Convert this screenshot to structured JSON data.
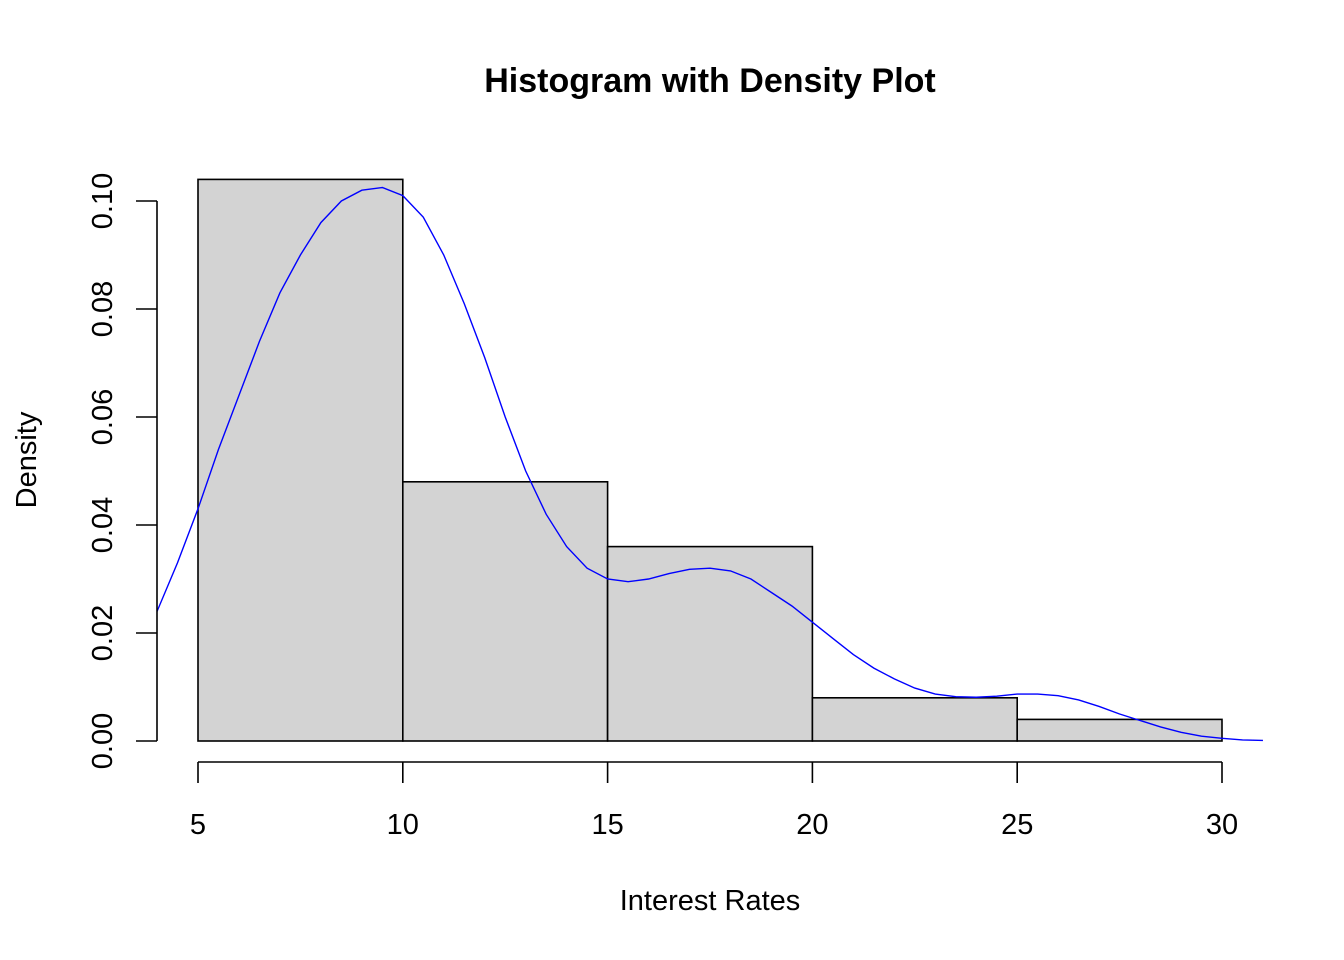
{
  "chart_data": {
    "type": "bar",
    "title": "Histogram with Density Plot",
    "xlabel": "Interest Rates",
    "ylabel": "Density",
    "bins": [
      {
        "from": 5,
        "to": 10,
        "density": 0.104
      },
      {
        "from": 10,
        "to": 15,
        "density": 0.048
      },
      {
        "from": 15,
        "to": 20,
        "density": 0.036
      },
      {
        "from": 20,
        "to": 25,
        "density": 0.008
      },
      {
        "from": 25,
        "to": 30,
        "density": 0.004
      }
    ],
    "density_curve": {
      "x": [
        4,
        4.5,
        5,
        5.5,
        6,
        6.5,
        7,
        7.5,
        8,
        8.5,
        9,
        9.5,
        10,
        10.5,
        11,
        11.5,
        12,
        12.5,
        13,
        13.5,
        14,
        14.5,
        15,
        15.5,
        16,
        16.5,
        17,
        17.5,
        18,
        18.5,
        19,
        19.5,
        20,
        20.5,
        21,
        21.5,
        22,
        22.5,
        23,
        23.5,
        24,
        24.5,
        25,
        25.5,
        26,
        26.5,
        27,
        27.5,
        28,
        28.5,
        29,
        29.5,
        30,
        30.5,
        31
      ],
      "y": [
        0.024,
        0.033,
        0.043,
        0.054,
        0.064,
        0.074,
        0.083,
        0.09,
        0.096,
        0.1,
        0.102,
        0.1025,
        0.101,
        0.097,
        0.09,
        0.081,
        0.071,
        0.06,
        0.05,
        0.042,
        0.036,
        0.032,
        0.03,
        0.0295,
        0.03,
        0.031,
        0.0318,
        0.032,
        0.0315,
        0.03,
        0.0275,
        0.025,
        0.022,
        0.019,
        0.016,
        0.0135,
        0.0115,
        0.0098,
        0.0087,
        0.0082,
        0.0081,
        0.0083,
        0.0087,
        0.0087,
        0.0084,
        0.0076,
        0.0064,
        0.005,
        0.0038,
        0.0026,
        0.0016,
        0.0009,
        0.0005,
        0.0002,
        0.0001
      ],
      "color": "#0000ff"
    },
    "bar_fill": "#d3d3d3",
    "x_ticks": [
      5,
      10,
      15,
      20,
      25,
      30
    ],
    "x_tick_labels": [
      "5",
      "10",
      "15",
      "20",
      "25",
      "30"
    ],
    "y_ticks": [
      0,
      0.02,
      0.04,
      0.06,
      0.08,
      0.1
    ],
    "y_tick_labels": [
      "0.00",
      "0.02",
      "0.04",
      "0.06",
      "0.08",
      "0.10"
    ],
    "xlim": [
      4,
      31
    ],
    "ylim": [
      0,
      0.104
    ],
    "grid": false,
    "legend": "none"
  }
}
